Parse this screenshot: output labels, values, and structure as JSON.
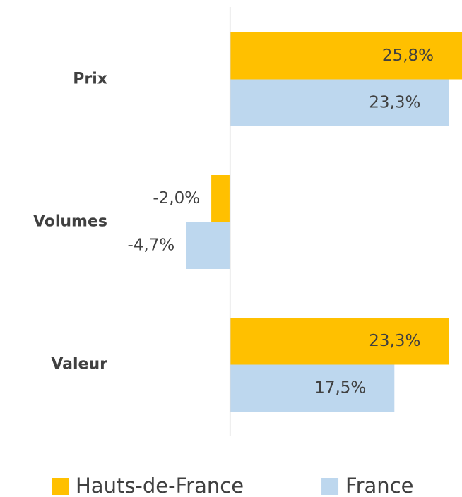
{
  "chart_data": {
    "type": "hbar",
    "categories": [
      "Prix",
      "Volumes",
      "Valeur"
    ],
    "series": [
      {
        "name": "Hauts-de-France",
        "color": "#ffc000",
        "values": [
          25.8,
          -2.0,
          23.3
        ],
        "value_labels": [
          "25,8%",
          "-2,0%",
          "23,3%"
        ]
      },
      {
        "name": "France",
        "color": "#bdd7ee",
        "values": [
          23.3,
          -4.7,
          17.5
        ],
        "value_labels": [
          "23,3%",
          "-4,7%",
          "17,5%"
        ]
      }
    ],
    "xlim": [
      -24.5,
      24.7
    ],
    "legend": "bottom"
  }
}
